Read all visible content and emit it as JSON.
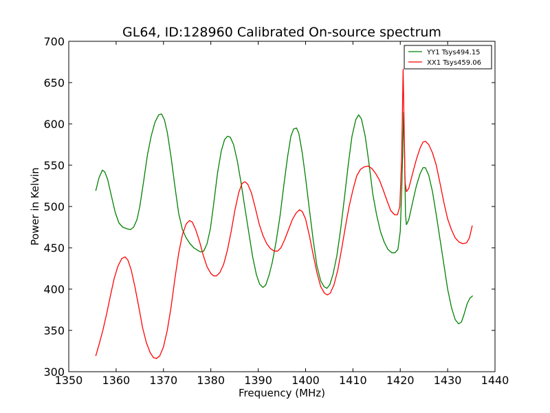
{
  "chart_data": {
    "type": "line",
    "title": "GL64, ID:128960 Calibrated On-source spectrum",
    "xlabel": "Frequency (MHz)",
    "ylabel": "Power in Kelvin",
    "xlim": [
      1350,
      1440
    ],
    "ylim": [
      300,
      700
    ],
    "xticks": [
      "1350",
      "1360",
      "1370",
      "1380",
      "1390",
      "1400",
      "1410",
      "1420",
      "1430",
      "1440"
    ],
    "yticks": [
      "300",
      "350",
      "400",
      "450",
      "500",
      "550",
      "600",
      "650",
      "700"
    ],
    "grid": false,
    "legend_position": "top-right",
    "series": [
      {
        "name": "YY1 Tsys494.15",
        "color": "#008000",
        "points": [
          [
            1355.7,
            519
          ],
          [
            1356.4,
            535
          ],
          [
            1357.1,
            544
          ],
          [
            1357.6,
            542
          ],
          [
            1358.2,
            533
          ],
          [
            1359.0,
            513
          ],
          [
            1359.8,
            493
          ],
          [
            1360.6,
            480
          ],
          [
            1361.4,
            475
          ],
          [
            1362.3,
            473
          ],
          [
            1363.0,
            472
          ],
          [
            1363.7,
            475
          ],
          [
            1364.4,
            484
          ],
          [
            1365.0,
            500
          ],
          [
            1365.8,
            530
          ],
          [
            1366.6,
            562
          ],
          [
            1367.4,
            585
          ],
          [
            1368.2,
            602
          ],
          [
            1369.0,
            611
          ],
          [
            1369.6,
            612
          ],
          [
            1370.2,
            605
          ],
          [
            1370.8,
            590
          ],
          [
            1371.6,
            560
          ],
          [
            1372.4,
            525
          ],
          [
            1373.2,
            492
          ],
          [
            1374.0,
            472
          ],
          [
            1374.8,
            462
          ],
          [
            1375.6,
            455
          ],
          [
            1376.4,
            450
          ],
          [
            1377.2,
            447
          ],
          [
            1377.8,
            445
          ],
          [
            1378.5,
            446
          ],
          [
            1379.2,
            455
          ],
          [
            1379.9,
            473
          ],
          [
            1380.6,
            503
          ],
          [
            1381.4,
            540
          ],
          [
            1382.2,
            567
          ],
          [
            1382.9,
            581
          ],
          [
            1383.5,
            585
          ],
          [
            1384.1,
            584
          ],
          [
            1384.8,
            575
          ],
          [
            1385.6,
            555
          ],
          [
            1386.4,
            528
          ],
          [
            1387.2,
            498
          ],
          [
            1388.0,
            469
          ],
          [
            1388.8,
            440
          ],
          [
            1389.6,
            418
          ],
          [
            1390.3,
            406
          ],
          [
            1391.0,
            402
          ],
          [
            1391.6,
            405
          ],
          [
            1392.3,
            417
          ],
          [
            1393.0,
            433
          ],
          [
            1393.8,
            458
          ],
          [
            1394.6,
            488
          ],
          [
            1395.4,
            525
          ],
          [
            1396.2,
            560
          ],
          [
            1396.9,
            585
          ],
          [
            1397.5,
            594
          ],
          [
            1398.1,
            595
          ],
          [
            1398.6,
            588
          ],
          [
            1399.3,
            565
          ],
          [
            1400.0,
            535
          ],
          [
            1400.8,
            497
          ],
          [
            1401.6,
            460
          ],
          [
            1402.4,
            428
          ],
          [
            1403.2,
            410
          ],
          [
            1403.9,
            403
          ],
          [
            1404.5,
            401
          ],
          [
            1405.1,
            405
          ],
          [
            1405.8,
            418
          ],
          [
            1406.6,
            440
          ],
          [
            1407.4,
            472
          ],
          [
            1408.2,
            510
          ],
          [
            1409.0,
            550
          ],
          [
            1409.8,
            585
          ],
          [
            1410.6,
            605
          ],
          [
            1411.2,
            611
          ],
          [
            1411.8,
            606
          ],
          [
            1412.6,
            585
          ],
          [
            1413.4,
            552
          ],
          [
            1414.2,
            515
          ],
          [
            1415.0,
            490
          ],
          [
            1415.8,
            470
          ],
          [
            1416.6,
            457
          ],
          [
            1417.4,
            448
          ],
          [
            1418.2,
            444
          ],
          [
            1418.9,
            444
          ],
          [
            1419.5,
            448
          ],
          [
            1420.0,
            470
          ],
          [
            1420.3,
            520
          ],
          [
            1420.5,
            560
          ],
          [
            1420.7,
            614
          ],
          [
            1420.9,
            570
          ],
          [
            1421.1,
            490
          ],
          [
            1421.3,
            478
          ],
          [
            1421.8,
            484
          ],
          [
            1422.6,
            505
          ],
          [
            1423.4,
            525
          ],
          [
            1424.2,
            540
          ],
          [
            1424.8,
            547
          ],
          [
            1425.3,
            547
          ],
          [
            1426.0,
            538
          ],
          [
            1426.8,
            518
          ],
          [
            1427.6,
            490
          ],
          [
            1428.4,
            460
          ],
          [
            1429.2,
            430
          ],
          [
            1430.0,
            400
          ],
          [
            1430.8,
            378
          ],
          [
            1431.6,
            363
          ],
          [
            1432.3,
            358
          ],
          [
            1432.9,
            360
          ],
          [
            1433.5,
            370
          ],
          [
            1434.1,
            382
          ],
          [
            1434.7,
            389
          ],
          [
            1435.3,
            392
          ]
        ]
      },
      {
        "name": "XX1 Tsys459.06",
        "color": "#ff0000",
        "points": [
          [
            1355.7,
            319
          ],
          [
            1356.4,
            333
          ],
          [
            1357.2,
            350
          ],
          [
            1358.0,
            370
          ],
          [
            1358.8,
            392
          ],
          [
            1359.6,
            413
          ],
          [
            1360.4,
            428
          ],
          [
            1361.2,
            437
          ],
          [
            1361.9,
            439
          ],
          [
            1362.5,
            435
          ],
          [
            1363.2,
            423
          ],
          [
            1364.0,
            402
          ],
          [
            1364.8,
            378
          ],
          [
            1365.6,
            353
          ],
          [
            1366.4,
            335
          ],
          [
            1367.2,
            323
          ],
          [
            1367.9,
            317
          ],
          [
            1368.5,
            316
          ],
          [
            1369.2,
            319
          ],
          [
            1370.0,
            330
          ],
          [
            1370.8,
            350
          ],
          [
            1371.6,
            378
          ],
          [
            1372.4,
            412
          ],
          [
            1373.2,
            443
          ],
          [
            1374.0,
            466
          ],
          [
            1374.8,
            479
          ],
          [
            1375.5,
            483
          ],
          [
            1376.1,
            481
          ],
          [
            1376.8,
            472
          ],
          [
            1377.6,
            458
          ],
          [
            1378.4,
            441
          ],
          [
            1379.2,
            427
          ],
          [
            1380.0,
            419
          ],
          [
            1380.6,
            416
          ],
          [
            1381.2,
            416
          ],
          [
            1381.9,
            420
          ],
          [
            1382.7,
            430
          ],
          [
            1383.5,
            447
          ],
          [
            1384.3,
            470
          ],
          [
            1385.1,
            496
          ],
          [
            1385.9,
            517
          ],
          [
            1386.6,
            528
          ],
          [
            1387.2,
            530
          ],
          [
            1387.8,
            527
          ],
          [
            1388.6,
            516
          ],
          [
            1389.4,
            498
          ],
          [
            1390.2,
            479
          ],
          [
            1391.0,
            465
          ],
          [
            1391.8,
            455
          ],
          [
            1392.6,
            449
          ],
          [
            1393.4,
            446
          ],
          [
            1394.1,
            446
          ],
          [
            1394.8,
            450
          ],
          [
            1395.6,
            460
          ],
          [
            1396.4,
            472
          ],
          [
            1397.2,
            484
          ],
          [
            1398.0,
            492
          ],
          [
            1398.7,
            496
          ],
          [
            1399.3,
            494
          ],
          [
            1400.0,
            485
          ],
          [
            1400.8,
            465
          ],
          [
            1401.6,
            442
          ],
          [
            1402.4,
            420
          ],
          [
            1403.2,
            403
          ],
          [
            1404.0,
            395
          ],
          [
            1404.6,
            393
          ],
          [
            1405.2,
            395
          ],
          [
            1406.0,
            405
          ],
          [
            1406.8,
            423
          ],
          [
            1407.6,
            448
          ],
          [
            1408.4,
            475
          ],
          [
            1409.2,
            500
          ],
          [
            1410.0,
            520
          ],
          [
            1410.8,
            537
          ],
          [
            1411.6,
            545
          ],
          [
            1412.4,
            548
          ],
          [
            1413.2,
            549
          ],
          [
            1414.0,
            546
          ],
          [
            1414.8,
            540
          ],
          [
            1415.6,
            532
          ],
          [
            1416.4,
            520
          ],
          [
            1417.2,
            507
          ],
          [
            1418.0,
            495
          ],
          [
            1418.8,
            490
          ],
          [
            1419.4,
            490
          ],
          [
            1419.9,
            500
          ],
          [
            1420.3,
            560
          ],
          [
            1420.6,
            666
          ],
          [
            1420.8,
            600
          ],
          [
            1421.0,
            530
          ],
          [
            1421.3,
            518
          ],
          [
            1421.8,
            522
          ],
          [
            1422.6,
            540
          ],
          [
            1423.4,
            557
          ],
          [
            1424.2,
            571
          ],
          [
            1424.8,
            578
          ],
          [
            1425.3,
            579
          ],
          [
            1426.0,
            575
          ],
          [
            1426.8,
            565
          ],
          [
            1427.6,
            550
          ],
          [
            1428.4,
            528
          ],
          [
            1429.2,
            505
          ],
          [
            1430.0,
            485
          ],
          [
            1430.8,
            472
          ],
          [
            1431.6,
            462
          ],
          [
            1432.4,
            457
          ],
          [
            1433.2,
            455
          ],
          [
            1434.0,
            456
          ],
          [
            1434.6,
            462
          ],
          [
            1435.2,
            477
          ]
        ]
      }
    ]
  }
}
